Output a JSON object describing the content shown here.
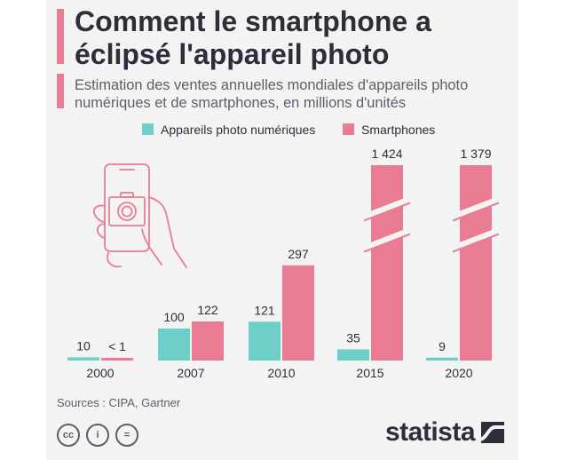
{
  "title": "Comment le smartphone a éclipsé l'appareil photo",
  "subtitle": "Estimation des ventes annuelles mondiales d'appareils photo numériques et de smartphones, en millions d'unités",
  "sources": "Sources : CIPA, Gartner",
  "brand": "statista",
  "license_icons": [
    "cc-icon",
    "attribution-icon",
    "no-derivatives-icon"
  ],
  "colors": {
    "cameras": "#6dcfc7",
    "smartphones": "#e97c93",
    "accent": "#e97c93",
    "text": "#2c2f3a"
  },
  "chart_data": {
    "type": "bar",
    "categories": [
      "2000",
      "2007",
      "2010",
      "2015",
      "2020"
    ],
    "series": [
      {
        "name": "Appareils photo numériques",
        "values": [
          10,
          100,
          121,
          35,
          9
        ],
        "labels": [
          "10",
          "100",
          "121",
          "35",
          "9"
        ]
      },
      {
        "name": "Smartphones",
        "values": [
          0.5,
          122,
          297,
          1424,
          1379
        ],
        "labels": [
          "< 1",
          "122",
          "297",
          "1 424",
          "1 379"
        ]
      }
    ],
    "axis_break": true,
    "legend_position": "top"
  }
}
